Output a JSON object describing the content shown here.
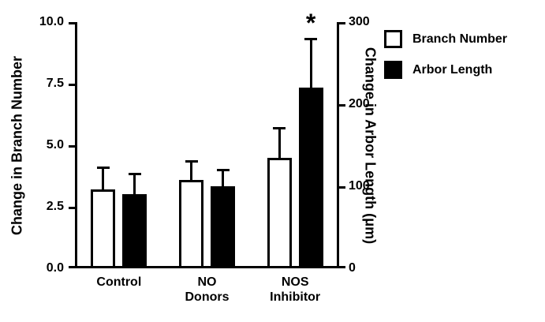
{
  "chart_data": {
    "type": "bar",
    "title": "",
    "categories": [
      "Control",
      "NO\nDonors",
      "NOS\nInhibitor"
    ],
    "series": [
      {
        "name": "Branch Number",
        "axis": "left",
        "fill": "#ffffff",
        "values": [
          3.2,
          3.6,
          4.5
        ],
        "errors_plus": [
          0.9,
          0.75,
          1.2
        ]
      },
      {
        "name": "Arbor Length",
        "axis": "right",
        "fill": "#000000",
        "values": [
          90,
          100,
          220
        ],
        "errors_plus": [
          25,
          20,
          60
        ]
      }
    ],
    "left_axis": {
      "label": "Change in Branch Number",
      "range": [
        0,
        10
      ],
      "tick_values": [
        0,
        2.5,
        5,
        7.5,
        10
      ],
      "ticks": [
        "0.0",
        "2.5",
        "5.0",
        "7.5",
        "10.0"
      ]
    },
    "right_axis": {
      "label": "Change in Arbor Length (μm)",
      "range": [
        0,
        300
      ],
      "tick_values": [
        0,
        100,
        200,
        300
      ],
      "ticks": [
        "0",
        "100",
        "200",
        "300"
      ]
    },
    "annotations": [
      {
        "text": "*",
        "category_index": 2,
        "series_index": 1
      }
    ],
    "legend": {
      "position": "top-right",
      "entries": [
        "Branch Number",
        "Arbor Length"
      ]
    },
    "grid": false,
    "colors": {
      "outline": "#000000",
      "background": "#ffffff"
    }
  }
}
